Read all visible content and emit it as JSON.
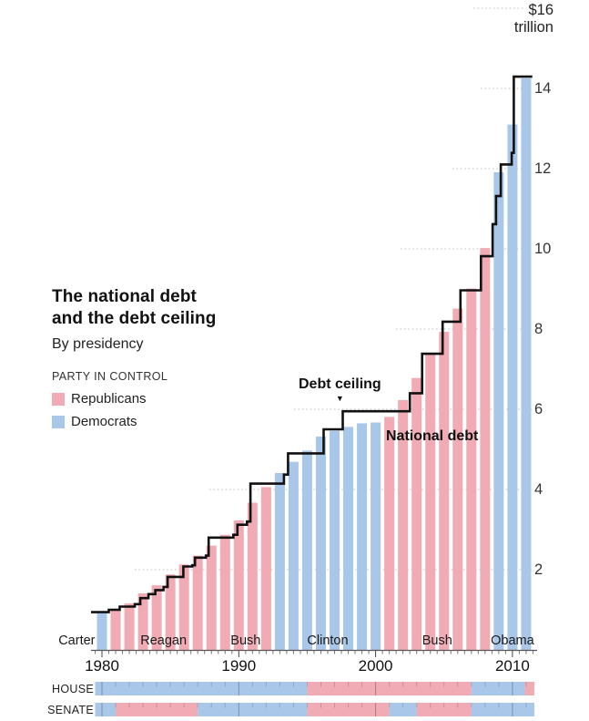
{
  "title": {
    "line1": "The national debt",
    "line2": "and the debt ceiling",
    "subtitle": "By presidency"
  },
  "legend": {
    "heading": "PARTY IN CONTROL",
    "items": [
      {
        "label": "Republicans",
        "party": "R",
        "color": "#f0abb4"
      },
      {
        "label": "Democrats",
        "party": "D",
        "color": "#a9c7e8"
      }
    ]
  },
  "annotations": {
    "debt_ceiling": "Debt ceiling",
    "national_debt": "National debt",
    "pointer_icon": "▼"
  },
  "y_axis": {
    "top_label_value": "$16",
    "top_label_unit": "trillion",
    "ticks": [
      14,
      12,
      10,
      8,
      6,
      4,
      2
    ]
  },
  "x_axis": {
    "ticks": [
      1980,
      1990,
      2000,
      2010
    ]
  },
  "presidents": [
    {
      "name": "Carter",
      "start": 1980,
      "end": 1980,
      "party": "D"
    },
    {
      "name": "Reagan",
      "start": 1981,
      "end": 1988,
      "party": "R"
    },
    {
      "name": "Bush",
      "start": 1989,
      "end": 1992,
      "party": "R"
    },
    {
      "name": "Clinton",
      "start": 1993,
      "end": 2000,
      "party": "D"
    },
    {
      "name": "Bush",
      "start": 2001,
      "end": 2008,
      "party": "R"
    },
    {
      "name": "Obama",
      "start": 2009,
      "end": 2011,
      "party": "D"
    }
  ],
  "congress": {
    "house": {
      "label": "HOUSE",
      "segments": [
        {
          "party": "D",
          "start": 1979.5,
          "end": 1995
        },
        {
          "party": "R",
          "start": 1995,
          "end": 2007
        },
        {
          "party": "D",
          "start": 2007,
          "end": 2010.9
        },
        {
          "party": "R",
          "start": 2010.9,
          "end": 2011.6
        }
      ]
    },
    "senate": {
      "label": "SENATE",
      "segments": [
        {
          "party": "D",
          "start": 1979.5,
          "end": 1981
        },
        {
          "party": "R",
          "start": 1981,
          "end": 1987
        },
        {
          "party": "D",
          "start": 1987,
          "end": 1995
        },
        {
          "party": "R",
          "start": 1995,
          "end": 2001
        },
        {
          "party": "D",
          "start": 2001,
          "end": 2003
        },
        {
          "party": "R",
          "start": 2003,
          "end": 2007
        },
        {
          "party": "D",
          "start": 2007,
          "end": 2011.6
        }
      ]
    }
  },
  "chart_data": {
    "type": "bar",
    "title": "The national debt and the debt ceiling",
    "subtitle": "By presidency",
    "unit": "trillions of dollars",
    "ylim": [
      0,
      16
    ],
    "yticks": [
      2,
      4,
      6,
      8,
      10,
      12,
      14,
      16
    ],
    "grid": "dotted",
    "x": [
      1980,
      1981,
      1982,
      1983,
      1984,
      1985,
      1986,
      1987,
      1988,
      1989,
      1990,
      1991,
      1992,
      1993,
      1994,
      1995,
      1996,
      1997,
      1998,
      1999,
      2000,
      2001,
      2002,
      2003,
      2004,
      2005,
      2006,
      2007,
      2008,
      2009,
      2010,
      2011
    ],
    "bar_party": [
      "D",
      "R",
      "R",
      "R",
      "R",
      "R",
      "R",
      "R",
      "R",
      "R",
      "R",
      "R",
      "R",
      "D",
      "D",
      "D",
      "D",
      "D",
      "D",
      "D",
      "D",
      "R",
      "R",
      "R",
      "R",
      "R",
      "R",
      "R",
      "R",
      "D",
      "D",
      "D"
    ],
    "series": [
      {
        "name": "National debt",
        "type": "bar",
        "values": [
          0.91,
          1.03,
          1.16,
          1.41,
          1.61,
          1.88,
          2.13,
          2.35,
          2.6,
          2.87,
          3.23,
          3.67,
          4.06,
          4.41,
          4.69,
          4.97,
          5.32,
          5.46,
          5.56,
          5.65,
          5.67,
          5.81,
          6.23,
          6.78,
          7.38,
          7.93,
          8.51,
          9.01,
          10.02,
          11.91,
          13.1,
          14.25
        ]
      },
      {
        "name": "Debt ceiling",
        "type": "step-line",
        "end_year": 2011.45,
        "points": [
          [
            1979.2,
            0.94
          ],
          [
            1980.5,
            1.0
          ],
          [
            1981.3,
            1.08
          ],
          [
            1982.4,
            1.14
          ],
          [
            1982.8,
            1.29
          ],
          [
            1983.4,
            1.39
          ],
          [
            1983.9,
            1.49
          ],
          [
            1984.5,
            1.57
          ],
          [
            1984.8,
            1.82
          ],
          [
            1985.95,
            2.08
          ],
          [
            1986.6,
            2.11
          ],
          [
            1986.8,
            2.3
          ],
          [
            1987.6,
            2.35
          ],
          [
            1987.8,
            2.8
          ],
          [
            1989.6,
            2.87
          ],
          [
            1989.9,
            3.12
          ],
          [
            1990.6,
            3.2
          ],
          [
            1990.85,
            4.145
          ],
          [
            1993.3,
            4.37
          ],
          [
            1993.6,
            4.9
          ],
          [
            1996.2,
            5.5
          ],
          [
            1997.6,
            5.95
          ],
          [
            2002.5,
            6.4
          ],
          [
            2003.4,
            7.384
          ],
          [
            2004.9,
            8.184
          ],
          [
            2006.2,
            8.965
          ],
          [
            2007.7,
            9.815
          ],
          [
            2008.55,
            10.615
          ],
          [
            2008.8,
            11.315
          ],
          [
            2009.15,
            12.104
          ],
          [
            2009.95,
            12.394
          ],
          [
            2010.1,
            14.294
          ]
        ]
      }
    ],
    "colors": {
      "republican": "#f0abb4",
      "democrat": "#a9c7e8",
      "ceiling_line": "#111111",
      "gridline": "#c0c0c0"
    }
  }
}
